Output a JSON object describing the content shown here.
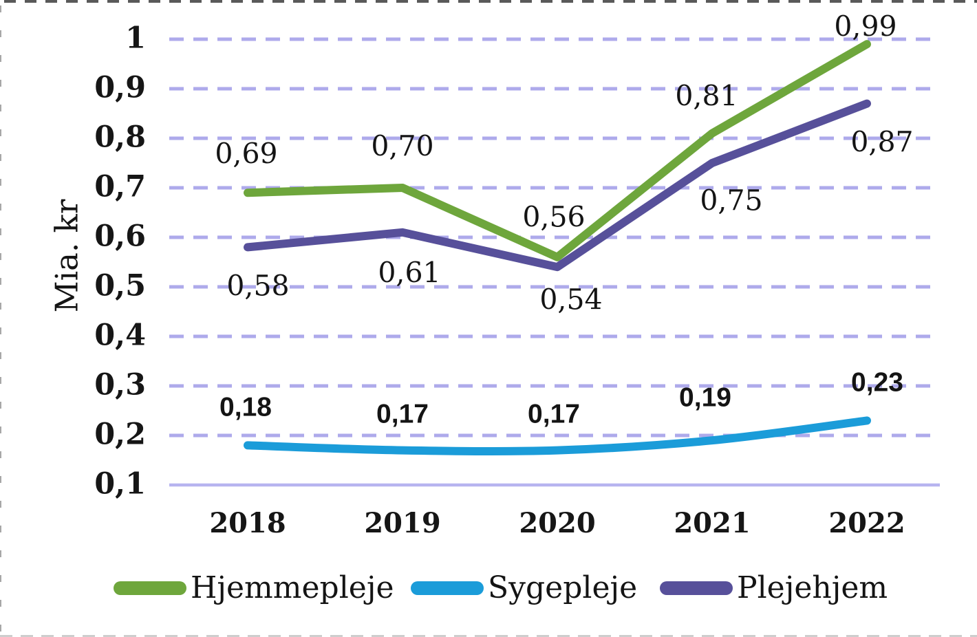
{
  "chart_data": {
    "type": "line",
    "title": "",
    "ylabel": "Mia. kr",
    "xlabel": "",
    "categories": [
      "2018",
      "2019",
      "2020",
      "2021",
      "2022"
    ],
    "series": [
      {
        "name": "Hjemmepleje",
        "color": "#6EA63C",
        "values": [
          0.69,
          0.7,
          0.56,
          0.81,
          0.99
        ],
        "labels": [
          "0,69",
          "0,70",
          "0,56",
          "0,81",
          "0,99"
        ],
        "label_style": "serif",
        "label_offsets": [
          [
            -2,
            -56
          ],
          [
            0,
            -60
          ],
          [
            -5,
            -58
          ],
          [
            -8,
            -54
          ],
          [
            -2,
            -25
          ]
        ],
        "smooth": false
      },
      {
        "name": "Sygepleje",
        "color": "#1B9CD9",
        "values": [
          0.18,
          0.17,
          0.17,
          0.19,
          0.23
        ],
        "labels": [
          "0,18",
          "0,17",
          "0,17",
          "0,19",
          "0,23"
        ],
        "label_style": "sans",
        "label_offsets": [
          [
            -3,
            -55
          ],
          [
            0,
            -53
          ],
          [
            -5,
            -53
          ],
          [
            -10,
            -62
          ],
          [
            15,
            -55
          ]
        ],
        "smooth": true
      },
      {
        "name": "Plejehjem",
        "color": "#57509A",
        "values": [
          0.58,
          0.61,
          0.54,
          0.75,
          0.87
        ],
        "labels": [
          "0,58",
          "0,61",
          "0,54",
          "0,75",
          "0,87"
        ],
        "label_style": "serif",
        "label_offsets": [
          [
            15,
            57
          ],
          [
            10,
            59
          ],
          [
            20,
            48
          ],
          [
            28,
            55
          ],
          [
            22,
            56
          ]
        ],
        "smooth": false
      }
    ],
    "y_axis": {
      "ticks": [
        "1",
        "0,9",
        "0,8",
        "0,7",
        "0,6",
        "0,5",
        "0,4",
        "0,3",
        "0,2",
        "0,1"
      ],
      "tick_values": [
        1,
        0.9,
        0.8,
        0.7,
        0.6,
        0.5,
        0.4,
        0.3,
        0.2,
        0.1
      ],
      "min": 0.1,
      "max": 1.0
    },
    "x_axis": {
      "ticks": [
        "2018",
        "2019",
        "2020",
        "2021",
        "2022"
      ]
    },
    "grid": "horizontal-dashed",
    "legend_position": "bottom",
    "legend": [
      "Hjemmepleje",
      "Sygepleje",
      "Plejehjem"
    ],
    "decimal_separator": ","
  },
  "colors": {
    "gridline": "#AEAAEB",
    "axis_line": "#B7B4F0",
    "text": "#141414",
    "border_dash_dark": "#3E3E3E",
    "border_dash_light": "#A0A0A0"
  }
}
